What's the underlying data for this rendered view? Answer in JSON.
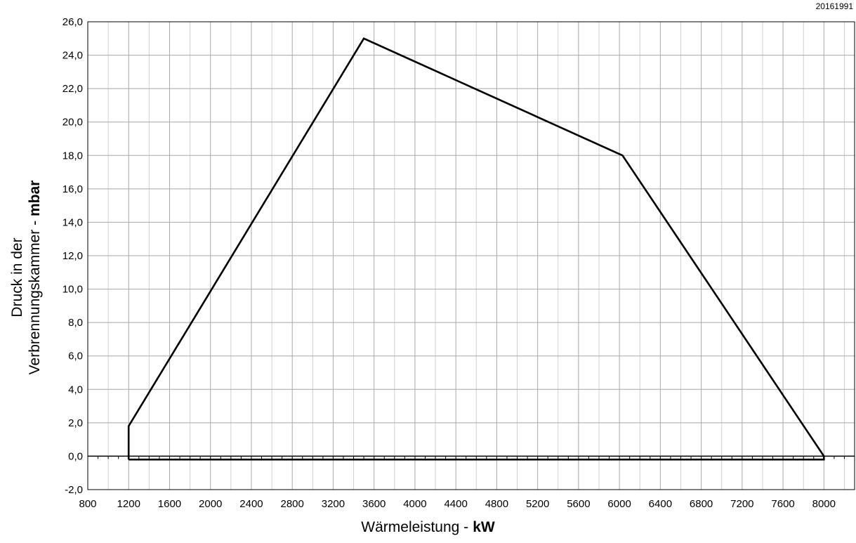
{
  "doc_id": "20161991",
  "chart_data": {
    "type": "line",
    "xlabel_text": "Wärmeleistung -",
    "xlabel_unit": "kW",
    "ylabel_line1": "Druck in der",
    "ylabel_line2_text": "Verbrennungskammer -",
    "ylabel_line2_unit": "mbar",
    "xlim": [
      800,
      8300
    ],
    "ylim": [
      -2,
      26
    ],
    "x_ticks": [
      800,
      1200,
      1600,
      2000,
      2400,
      2800,
      3200,
      3600,
      4000,
      4400,
      4800,
      5200,
      5600,
      6000,
      6400,
      6800,
      7200,
      7600,
      8000
    ],
    "x_tick_labels": [
      "800",
      "1200",
      "1600",
      "2000",
      "2400",
      "2800",
      "3200",
      "3600",
      "4000",
      "4400",
      "4800",
      "5200",
      "5600",
      "6000",
      "6400",
      "6800",
      "7200",
      "7600",
      "8000"
    ],
    "y_ticks": [
      -2,
      0,
      2,
      4,
      6,
      8,
      10,
      12,
      14,
      16,
      18,
      20,
      22,
      24,
      26
    ],
    "y_tick_labels": [
      "-2,0",
      "0,0",
      "2,0",
      "4,0",
      "6,0",
      "8,0",
      "10,0",
      "12,0",
      "14,0",
      "16,0",
      "18,0",
      "20,0",
      "22,0",
      "24,0",
      "26,0"
    ],
    "grid": true,
    "series": [
      {
        "color": "#000000",
        "points": [
          [
            1200,
            -0.2
          ],
          [
            1200,
            1.8
          ],
          [
            3500,
            25.0
          ],
          [
            6030,
            18.0
          ],
          [
            8000,
            0.0
          ],
          [
            8000,
            -0.2
          ],
          [
            1200,
            -0.2
          ]
        ]
      }
    ]
  }
}
